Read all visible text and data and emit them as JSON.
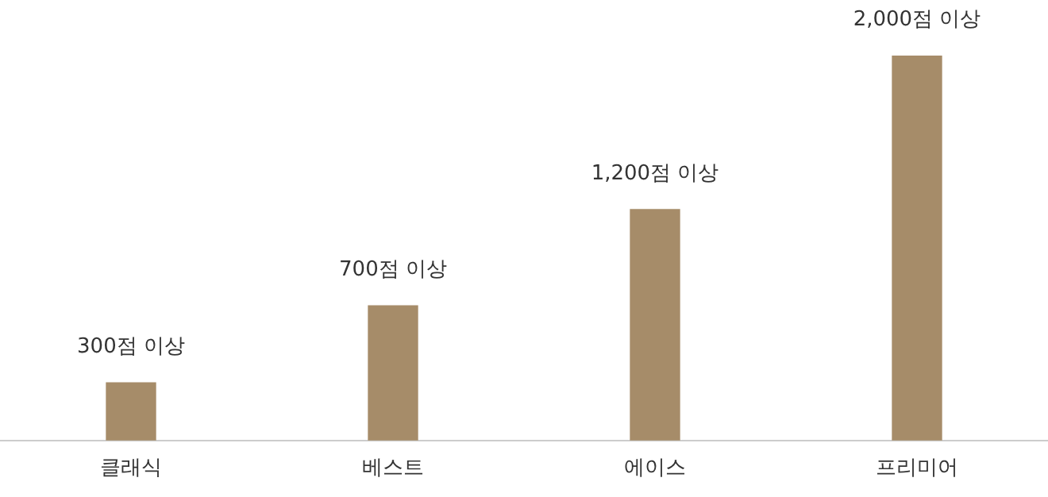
{
  "chart_data": {
    "type": "bar",
    "categories": [
      "클래식",
      "베스트",
      "에이스",
      "프리미어"
    ],
    "values": [
      300,
      700,
      1200,
      2000
    ],
    "value_labels": [
      "300점 이상",
      "700점 이상",
      "1,200점 이상",
      "2,000점 이상"
    ],
    "ylim": [
      0,
      2000
    ],
    "tick_labels": "x",
    "color": "#a68c69",
    "grid": false,
    "legend": false
  }
}
